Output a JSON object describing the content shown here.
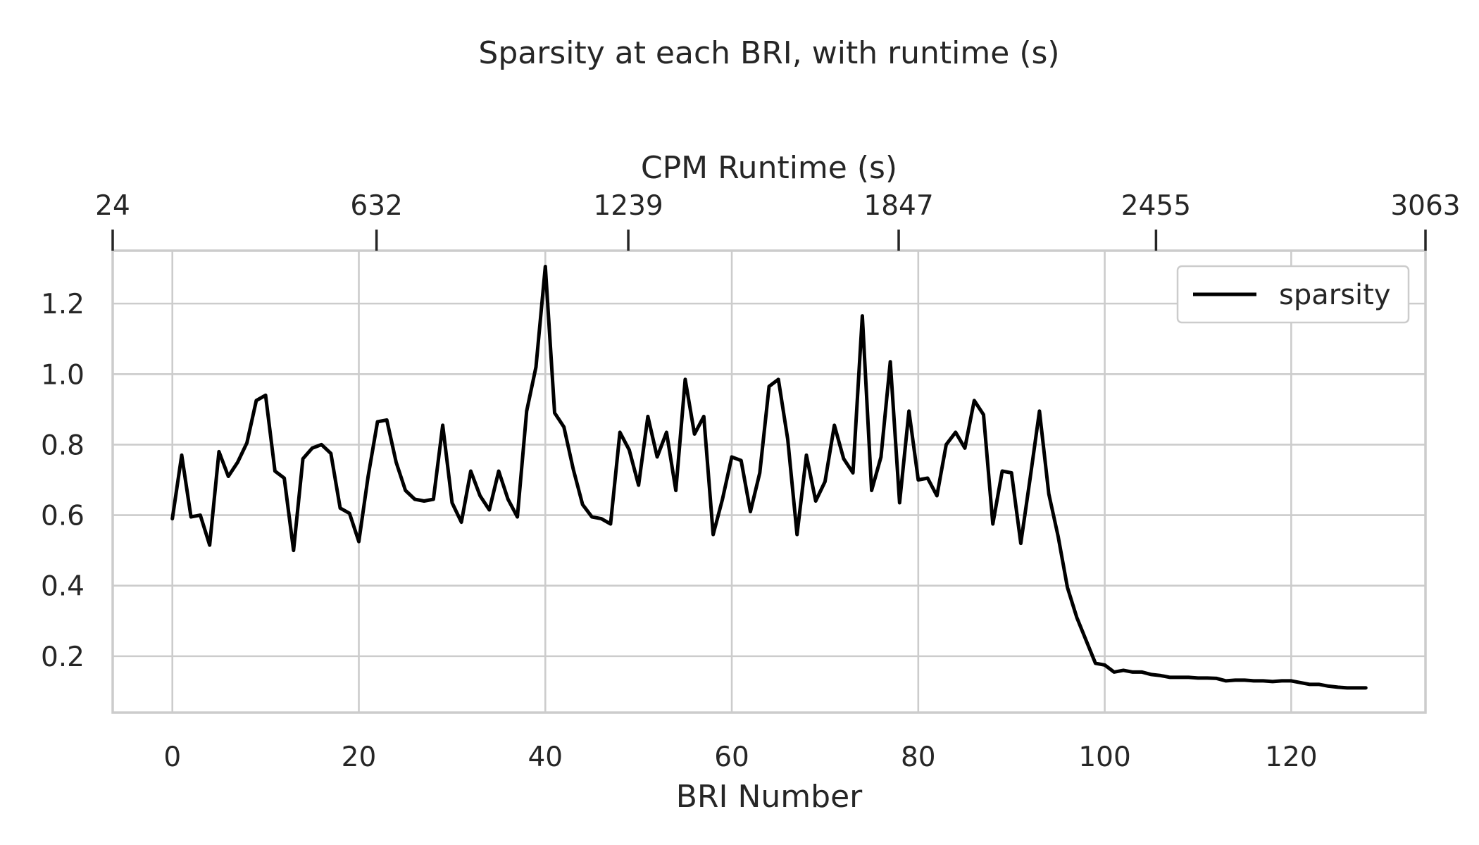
{
  "chart_data": {
    "type": "line",
    "title": "Sparsity at each BRI, with runtime (s)",
    "xlabel": "BRI Number",
    "ylabel": "",
    "top_xlabel": "CPM Runtime (s)",
    "xlim": [
      -6.4,
      134.4
    ],
    "ylim": [
      0.04,
      1.35
    ],
    "x_ticks": [
      0,
      20,
      40,
      60,
      80,
      100,
      120
    ],
    "y_ticks": [
      0.2,
      0.4,
      0.6,
      0.8,
      1.0,
      1.2
    ],
    "y_tick_labels": [
      "0.2",
      "0.4",
      "0.6",
      "0.8",
      "1.0",
      "1.2"
    ],
    "top_ticks": [
      {
        "x": -6.4,
        "label": "24"
      },
      {
        "x": 21.9,
        "label": "632"
      },
      {
        "x": 48.9,
        "label": "1239"
      },
      {
        "x": 77.9,
        "label": "1847"
      },
      {
        "x": 105.5,
        "label": "2455"
      },
      {
        "x": 134.4,
        "label": "3063"
      }
    ],
    "grid": true,
    "legend_position": "top-right",
    "series": [
      {
        "name": "sparsity",
        "color": "#000000",
        "x": [
          0,
          1,
          2,
          3,
          4,
          5,
          6,
          7,
          8,
          9,
          10,
          11,
          12,
          13,
          14,
          15,
          16,
          17,
          18,
          19,
          20,
          21,
          22,
          23,
          24,
          25,
          26,
          27,
          28,
          29,
          30,
          31,
          32,
          33,
          34,
          35,
          36,
          37,
          38,
          39,
          40,
          41,
          42,
          43,
          44,
          45,
          46,
          47,
          48,
          49,
          50,
          51,
          52,
          53,
          54,
          55,
          56,
          57,
          58,
          59,
          60,
          61,
          62,
          63,
          64,
          65,
          66,
          67,
          68,
          69,
          70,
          71,
          72,
          73,
          74,
          75,
          76,
          77,
          78,
          79,
          80,
          81,
          82,
          83,
          84,
          85,
          86,
          87,
          88,
          89,
          90,
          91,
          92,
          93,
          94,
          95,
          96,
          97,
          98,
          99,
          100,
          101,
          102,
          103,
          104,
          105,
          106,
          107,
          108,
          109,
          110,
          111,
          112,
          113,
          114,
          115,
          116,
          117,
          118,
          119,
          120,
          121,
          122,
          123,
          124,
          125,
          126,
          127,
          128
        ],
        "values": [
          0.59,
          0.77,
          0.595,
          0.6,
          0.515,
          0.78,
          0.71,
          0.75,
          0.805,
          0.925,
          0.94,
          0.725,
          0.705,
          0.5,
          0.76,
          0.79,
          0.8,
          0.775,
          0.62,
          0.605,
          0.525,
          0.71,
          0.865,
          0.87,
          0.75,
          0.67,
          0.645,
          0.64,
          0.645,
          0.855,
          0.635,
          0.58,
          0.725,
          0.655,
          0.615,
          0.725,
          0.645,
          0.595,
          0.895,
          1.02,
          1.305,
          0.89,
          0.85,
          0.73,
          0.63,
          0.595,
          0.59,
          0.575,
          0.835,
          0.785,
          0.685,
          0.88,
          0.765,
          0.835,
          0.67,
          0.985,
          0.83,
          0.88,
          0.545,
          0.645,
          0.765,
          0.755,
          0.61,
          0.72,
          0.965,
          0.985,
          0.815,
          0.545,
          0.77,
          0.64,
          0.695,
          0.855,
          0.76,
          0.72,
          1.165,
          0.67,
          0.765,
          1.035,
          0.635,
          0.895,
          0.7,
          0.705,
          0.655,
          0.8,
          0.835,
          0.79,
          0.925,
          0.885,
          0.575,
          0.725,
          0.72,
          0.52,
          0.705,
          0.895,
          0.66,
          0.54,
          0.395,
          0.31,
          0.245,
          0.18,
          0.175,
          0.155,
          0.16,
          0.155,
          0.155,
          0.148,
          0.145,
          0.14,
          0.14,
          0.14,
          0.138,
          0.138,
          0.137,
          0.13,
          0.132,
          0.132,
          0.13,
          0.13,
          0.128,
          0.13,
          0.13,
          0.125,
          0.12,
          0.12,
          0.115,
          0.112,
          0.11,
          0.11,
          0.11
        ]
      }
    ]
  }
}
